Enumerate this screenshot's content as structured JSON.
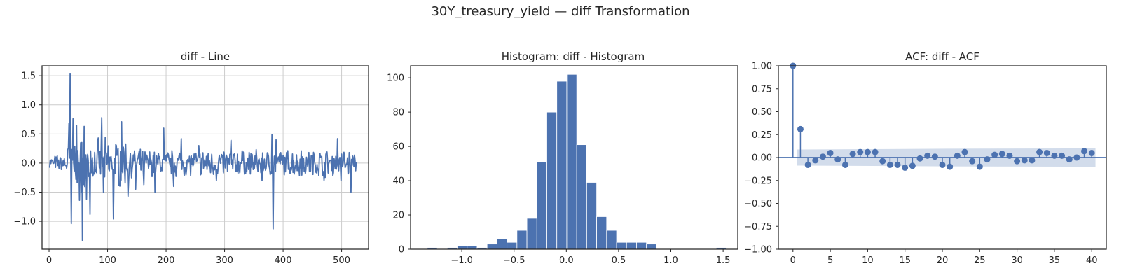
{
  "figure": {
    "suptitle": "30Y_treasury_yield — diff Transformation"
  },
  "colors": {
    "series": "#4c72b0",
    "band": "#4c72b0",
    "grid": "#cccccc",
    "axes": "#262626"
  },
  "chart_data": [
    {
      "type": "line",
      "title": "diff - Line",
      "grid": true,
      "xlim": [
        -12,
        546
      ],
      "ylim": [
        -1.48,
        1.67
      ],
      "xticks": [
        0,
        100,
        200,
        300,
        400,
        500
      ],
      "xtick_labels": [
        "0",
        "100",
        "200",
        "300",
        "400",
        "500"
      ],
      "yticks": [
        -1.0,
        -0.5,
        0.0,
        0.5,
        1.0,
        1.5
      ],
      "ytick_labels": [
        "−1.0",
        "−0.5",
        "0.0",
        "0.5",
        "1.0",
        "1.5"
      ],
      "spikes": [
        [
          34,
          0.68
        ],
        [
          36,
          1.53
        ],
        [
          38,
          -1.04
        ],
        [
          41,
          0.76
        ],
        [
          47,
          0.65
        ],
        [
          52,
          -0.64
        ],
        [
          55,
          -0.5
        ],
        [
          57,
          -1.33
        ],
        [
          60,
          0.63
        ],
        [
          64,
          -0.62
        ],
        [
          70,
          -0.88
        ],
        [
          90,
          0.78
        ],
        [
          93,
          -0.5
        ],
        [
          110,
          -0.96
        ],
        [
          124,
          0.71
        ],
        [
          135,
          -0.57
        ],
        [
          148,
          -0.45
        ],
        [
          162,
          -0.37
        ],
        [
          181,
          -0.5
        ],
        [
          196,
          0.6
        ],
        [
          213,
          -0.4
        ],
        [
          226,
          0.42
        ],
        [
          256,
          0.3
        ],
        [
          286,
          -0.3
        ],
        [
          311,
          0.39
        ],
        [
          364,
          -0.3
        ],
        [
          381,
          0.49
        ],
        [
          383,
          -1.13
        ],
        [
          388,
          0.4
        ],
        [
          431,
          0.21
        ],
        [
          470,
          -0.3
        ],
        [
          493,
          0.42
        ],
        [
          499,
          -0.3
        ],
        [
          516,
          -0.5
        ],
        [
          523,
          0.05
        ]
      ],
      "series": [
        {
          "name": "",
          "n": 526
        }
      ]
    },
    {
      "type": "bar",
      "title": "Histogram: diff - Histogram",
      "grid": false,
      "xlim": [
        -1.49,
        1.64
      ],
      "ylim": [
        0,
        107
      ],
      "xticks": [
        -1.0,
        -0.5,
        0.0,
        0.5,
        1.0,
        1.5
      ],
      "xtick_labels": [
        "−1.0",
        "−0.5",
        "0.0",
        "0.5",
        "1.0",
        "1.5"
      ],
      "yticks": [
        0,
        20,
        40,
        60,
        80,
        100
      ],
      "ytick_labels": [
        "0",
        "20",
        "40",
        "60",
        "80",
        "100"
      ],
      "bin_start": -1.33,
      "bin_width": 0.0953,
      "values": [
        1,
        0,
        1,
        2,
        2,
        1,
        3,
        6,
        4,
        11,
        18,
        51,
        80,
        98,
        102,
        61,
        39,
        19,
        11,
        4,
        4,
        4,
        3,
        0,
        0,
        0,
        0,
        0,
        0,
        1
      ]
    },
    {
      "type": "scatter",
      "title": "ACF: diff - ACF",
      "grid": false,
      "xlim": [
        -1.95,
        41.95
      ],
      "ylim": [
        -1.0,
        1.0
      ],
      "xticks": [
        0,
        5,
        10,
        15,
        20,
        25,
        30,
        35,
        40
      ],
      "xtick_labels": [
        "0",
        "5",
        "10",
        "15",
        "20",
        "25",
        "30",
        "35",
        "40"
      ],
      "yticks": [
        -1.0,
        -0.75,
        -0.5,
        -0.25,
        0.0,
        0.25,
        0.5,
        0.75,
        1.0
      ],
      "ytick_labels": [
        "−1.00",
        "−0.75",
        "−0.50",
        "−0.25",
        "0.00",
        "0.25",
        "0.50",
        "0.75",
        "1.00"
      ],
      "x": [
        0,
        1,
        2,
        3,
        4,
        5,
        6,
        7,
        8,
        9,
        10,
        11,
        12,
        13,
        14,
        15,
        16,
        17,
        18,
        19,
        20,
        21,
        22,
        23,
        24,
        25,
        26,
        27,
        28,
        29,
        30,
        31,
        32,
        33,
        34,
        35,
        36,
        37,
        38,
        39,
        40
      ],
      "values": [
        1.0,
        0.31,
        -0.08,
        -0.03,
        0.01,
        0.05,
        -0.02,
        -0.08,
        0.04,
        0.06,
        0.06,
        0.06,
        -0.04,
        -0.08,
        -0.08,
        -0.11,
        -0.09,
        -0.01,
        0.02,
        0.01,
        -0.08,
        -0.1,
        0.02,
        0.06,
        -0.04,
        -0.1,
        -0.02,
        0.03,
        0.04,
        0.02,
        -0.04,
        -0.03,
        -0.03,
        0.06,
        0.05,
        0.02,
        0.02,
        -0.02,
        0.0,
        0.07,
        0.05
      ],
      "confidence_band": {
        "start": 0.5,
        "end": 40.5,
        "upper": [
          0.088,
          0.096,
          0.1
        ],
        "lower": [
          -0.088,
          -0.096,
          -0.1
        ]
      }
    }
  ]
}
